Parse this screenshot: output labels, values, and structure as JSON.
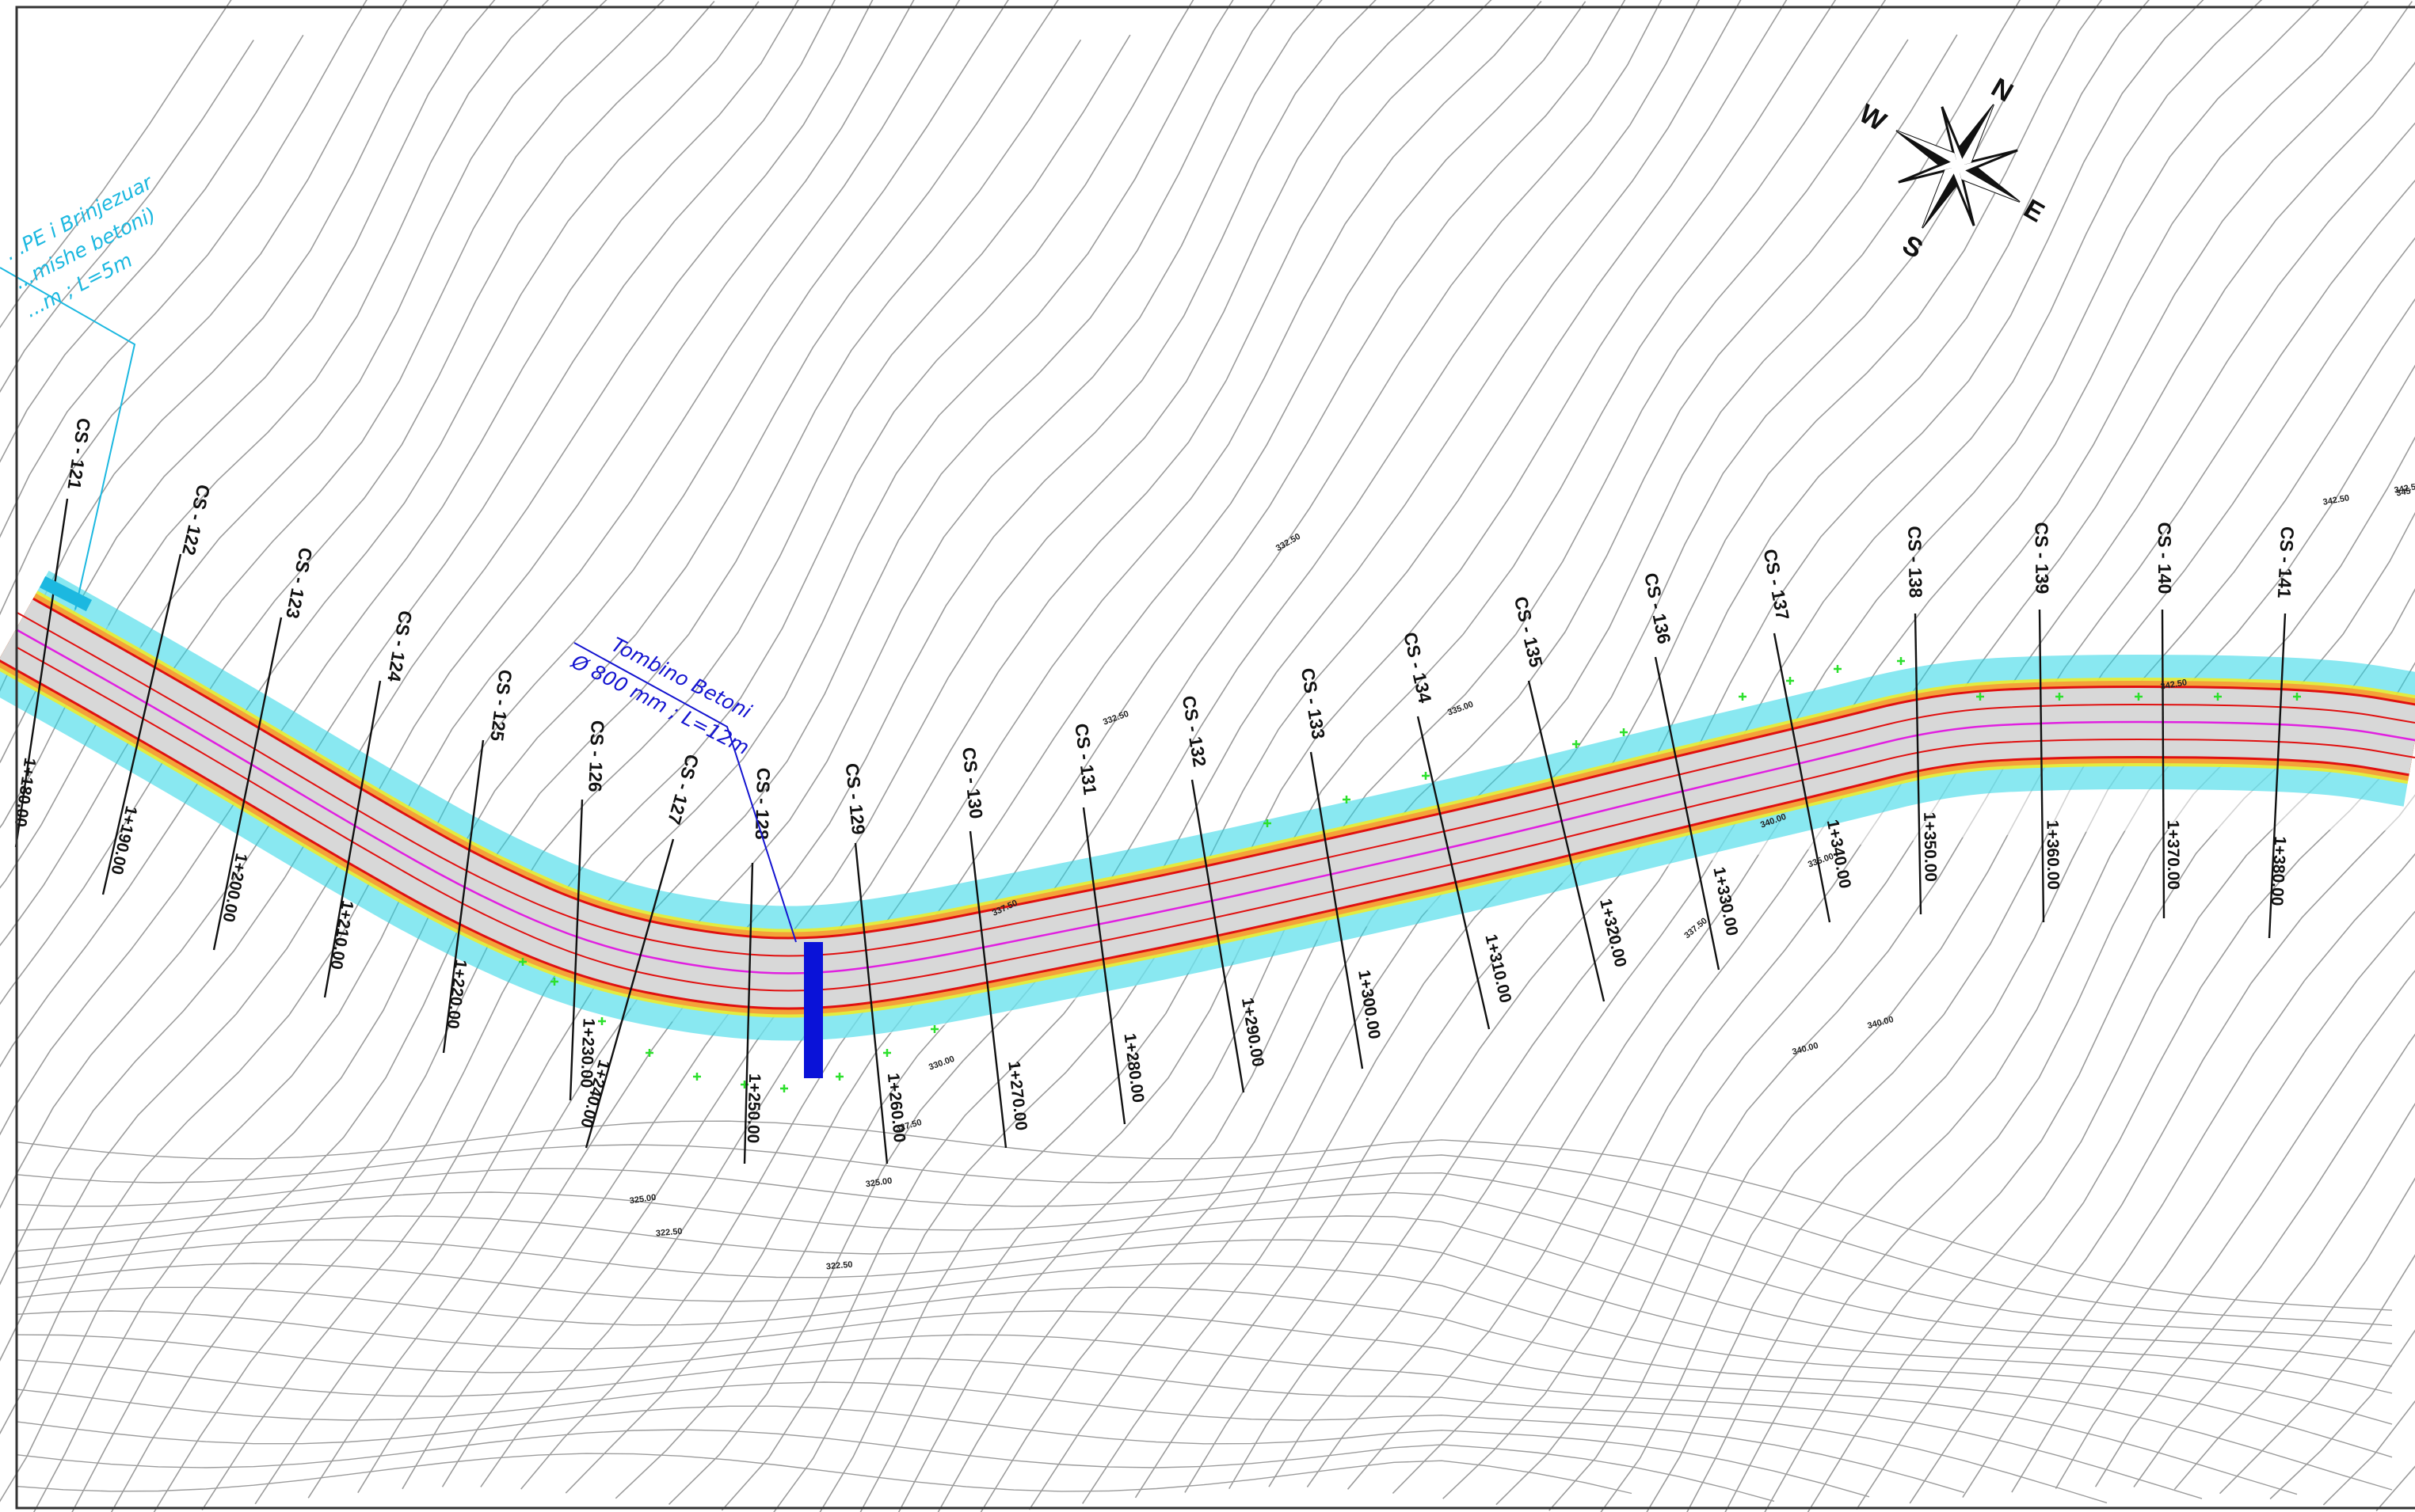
{
  "colors": {
    "contour": "#9c9c9c",
    "road_surface": "#d8d8d8",
    "edge_red": "#e01010",
    "shoulder_orange": "#f4a23a",
    "embankment_cyan": "#28d6e6",
    "centerline_magenta": "#e020e0",
    "fill_yellow": "#ecec2c",
    "culvert_blue": "#0a12d8",
    "callout_cyan": "#1cb8e0",
    "callout_blue": "#1414d0",
    "survey_green": "#2ce02c"
  },
  "compass": {
    "north": "N",
    "south": "S",
    "east": "E",
    "west": "W"
  },
  "cross_sections": [
    {
      "cs": "CS - 121",
      "chainage": "1+180.00"
    },
    {
      "cs": "CS - 122",
      "chainage": "1+190.00"
    },
    {
      "cs": "CS - 123",
      "chainage": "1+200.00"
    },
    {
      "cs": "CS - 124",
      "chainage": "1+210.00"
    },
    {
      "cs": "CS - 125",
      "chainage": "1+220.00"
    },
    {
      "cs": "CS - 126",
      "chainage": "1+230.00"
    },
    {
      "cs": "CS - 127",
      "chainage": "1+240.00"
    },
    {
      "cs": "CS - 128",
      "chainage": "1+250.00"
    },
    {
      "cs": "CS - 129",
      "chainage": "1+260.00"
    },
    {
      "cs": "CS - 130",
      "chainage": "1+270.00"
    },
    {
      "cs": "CS - 131",
      "chainage": "1+280.00"
    },
    {
      "cs": "CS - 132",
      "chainage": "1+290.00"
    },
    {
      "cs": "CS - 133",
      "chainage": "1+300.00"
    },
    {
      "cs": "CS - 134",
      "chainage": "1+310.00"
    },
    {
      "cs": "CS - 135",
      "chainage": "1+320.00"
    },
    {
      "cs": "CS - 136",
      "chainage": "1+330.00"
    },
    {
      "cs": "CS - 137",
      "chainage": "1+340.00"
    },
    {
      "cs": "CS - 138",
      "chainage": "1+350.00"
    },
    {
      "cs": "CS - 139",
      "chainage": "1+360.00"
    },
    {
      "cs": "CS - 140",
      "chainage": "1+370.00"
    },
    {
      "cs": "CS - 141",
      "chainage": "1+380.00"
    }
  ],
  "elevation_labels": [
    "332.50",
    "335.00",
    "335.00",
    "337.50",
    "340.00",
    "340.00",
    "342.50",
    "342.50",
    "342.50",
    "330.00",
    "327.50",
    "325.00",
    "325.00",
    "322.50",
    "322.50",
    "332.50",
    "337.50",
    "340.00",
    "345"
  ],
  "callouts": {
    "culvert_left": {
      "lines": [
        "...PE i Brinjezuar",
        "...mishe betoni)",
        "...m ; L=5m"
      ]
    },
    "culvert_mid": {
      "lines": [
        "Tombino Betoni",
        "Ø 800 mm ; L=12m"
      ]
    }
  }
}
